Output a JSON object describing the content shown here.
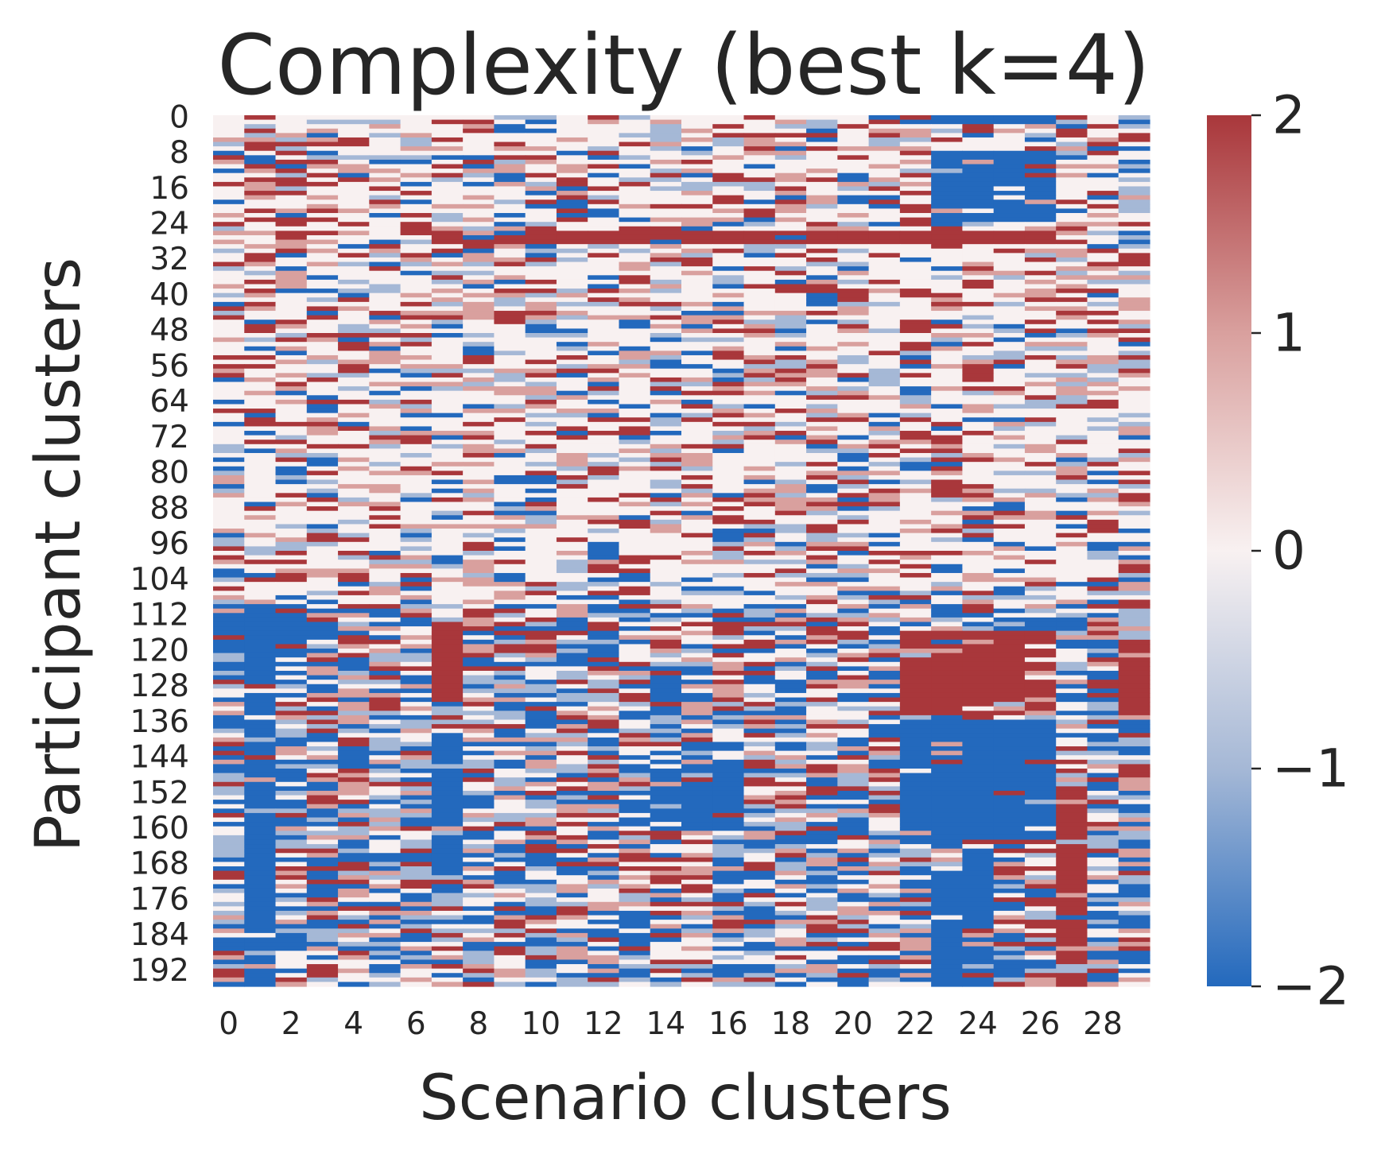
{
  "chart_data": {
    "type": "heatmap",
    "title": "Complexity (best k=4)",
    "xlabel": "Scenario clusters",
    "ylabel": "Participant clusters",
    "n_cols": 30,
    "n_rows": 196,
    "x_tick_labels": [
      "0",
      "2",
      "4",
      "6",
      "8",
      "10",
      "12",
      "14",
      "16",
      "18",
      "20",
      "22",
      "24",
      "26",
      "28"
    ],
    "y_tick_labels": [
      "0",
      "8",
      "16",
      "24",
      "32",
      "40",
      "48",
      "56",
      "64",
      "72",
      "80",
      "88",
      "96",
      "104",
      "112",
      "120",
      "128",
      "136",
      "144",
      "152",
      "160",
      "168",
      "176",
      "184",
      "192"
    ],
    "colorbar": {
      "vmin": -2,
      "vmax": 2,
      "tick_values": [
        2,
        1,
        0,
        -1,
        -2
      ],
      "tick_labels": [
        "2",
        "1",
        "0",
        "−1",
        "−2"
      ],
      "colormap": "vlag",
      "colors": [
        "#2369bd",
        "#a5b8d6",
        "#f8f1f1",
        "#d9a09e",
        "#a9373b"
      ]
    },
    "cell_value_levels": [
      -2,
      -1,
      0,
      1,
      2
    ],
    "blocks": [
      {
        "rows": [
          0,
          1
        ],
        "cols": [
          22,
          26
        ],
        "value": -2
      },
      {
        "rows": [
          8,
          23
        ],
        "cols": [
          23,
          26
        ],
        "value": -2
      },
      {
        "rows": [
          18,
          21
        ],
        "cols": [
          11,
          11
        ],
        "value": -2
      },
      {
        "rows": [
          26,
          28
        ],
        "cols": [
          7,
          26
        ],
        "value": 2
      },
      {
        "rows": [
          110,
          118
        ],
        "cols": [
          0,
          2
        ],
        "value": -2
      },
      {
        "rows": [
          114,
          132
        ],
        "cols": [
          7,
          7
        ],
        "value": 2
      },
      {
        "rows": [
          116,
          134
        ],
        "cols": [
          22,
          26
        ],
        "value": 2
      },
      {
        "rows": [
          118,
          134
        ],
        "cols": [
          29,
          29
        ],
        "value": 2
      },
      {
        "rows": [
          120,
          195
        ],
        "cols": [
          1,
          1
        ],
        "value": -2
      },
      {
        "rows": [
          136,
          162
        ],
        "cols": [
          22,
          26
        ],
        "value": -2
      },
      {
        "rows": [
          138,
          168
        ],
        "cols": [
          7,
          7
        ],
        "value": -2
      },
      {
        "rows": [
          146,
          160
        ],
        "cols": [
          14,
          16
        ],
        "value": -2
      },
      {
        "rows": [
          150,
          195
        ],
        "cols": [
          27,
          27
        ],
        "value": 2
      },
      {
        "rows": [
          170,
          195
        ],
        "cols": [
          23,
          24
        ],
        "value": -2
      }
    ]
  }
}
